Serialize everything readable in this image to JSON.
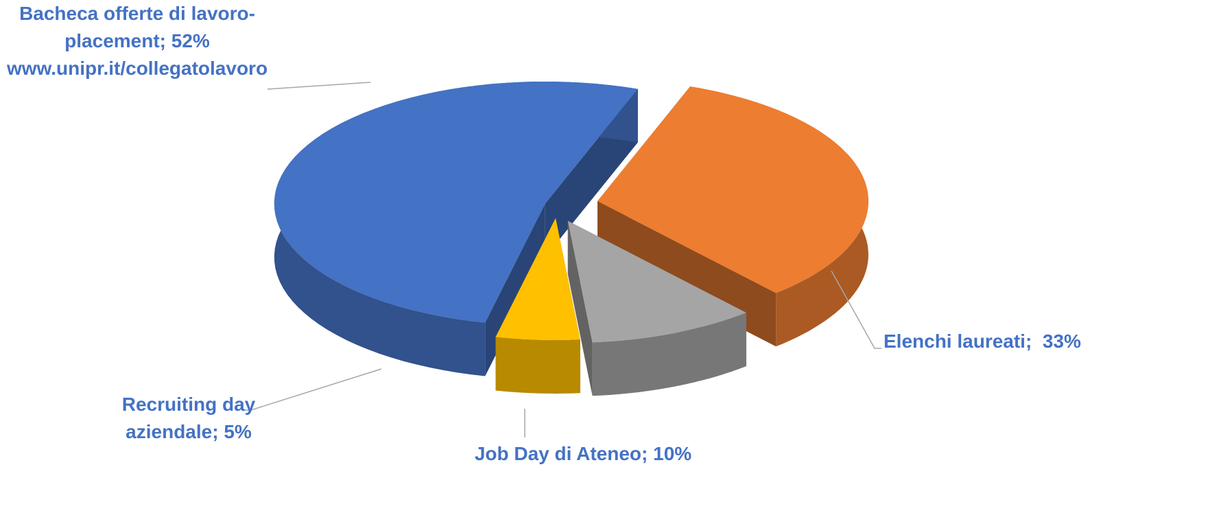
{
  "chart_data": {
    "type": "pie3d",
    "categories": [
      "Bacheca offerte di lavoro-placement;",
      "Elenchi laureati;",
      "Job Day di Ateneo;",
      "Recruiting day aziendale;"
    ],
    "values": [
      52,
      33,
      10,
      5
    ],
    "value_labels": [
      "52%",
      "33%",
      "10%",
      "5%"
    ],
    "colors": [
      "#4472c4",
      "#ed7d31",
      "#a5a5a5",
      "#ffc000"
    ],
    "annotation": "www.unipr.it/collegatolavoro"
  }
}
